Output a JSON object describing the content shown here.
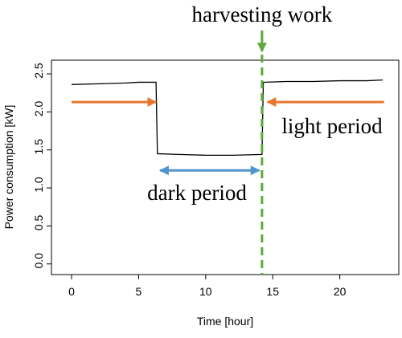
{
  "chart_data": {
    "type": "line",
    "xlabel": "Time [hour]",
    "ylabel": "Power consumption [kW]",
    "x": [
      0,
      2,
      4,
      5,
      6.3,
      6.4,
      8,
      10,
      12,
      14.2,
      14.3,
      16,
      18,
      20,
      22,
      23.2
    ],
    "series": [
      {
        "color": "#000000",
        "values": [
          2.36,
          2.37,
          2.38,
          2.39,
          2.39,
          1.45,
          1.44,
          1.43,
          1.43,
          1.44,
          2.39,
          2.4,
          2.4,
          2.41,
          2.41,
          2.42
        ]
      }
    ],
    "xlim": [
      -1.5,
      24.4
    ],
    "ylim": [
      -0.14,
      2.68
    ],
    "xticks": [
      0,
      5,
      10,
      15,
      20
    ],
    "yticks": [
      {
        "value": 0,
        "label": "0.0"
      },
      {
        "value": 0.5,
        "label": "0.5"
      },
      {
        "value": 1,
        "label": "1.0"
      },
      {
        "value": 1.5,
        "label": "1.5"
      },
      {
        "value": 2,
        "label": "2.0"
      },
      {
        "value": 2.5,
        "label": "2.5"
      }
    ],
    "annotations": [
      {
        "text": "harvesting work",
        "x": 14.2,
        "color": "#5aaa3c"
      },
      {
        "text": "light period",
        "x": [
          23.3,
          14.6
        ],
        "y": 2.13,
        "color": "#e8772e",
        "second_arrow_x": [
          0,
          6.3
        ]
      },
      {
        "text": "dark period",
        "x": [
          6.6,
          14.0
        ],
        "y": 1.23,
        "color": "#4f94cd"
      }
    ]
  }
}
